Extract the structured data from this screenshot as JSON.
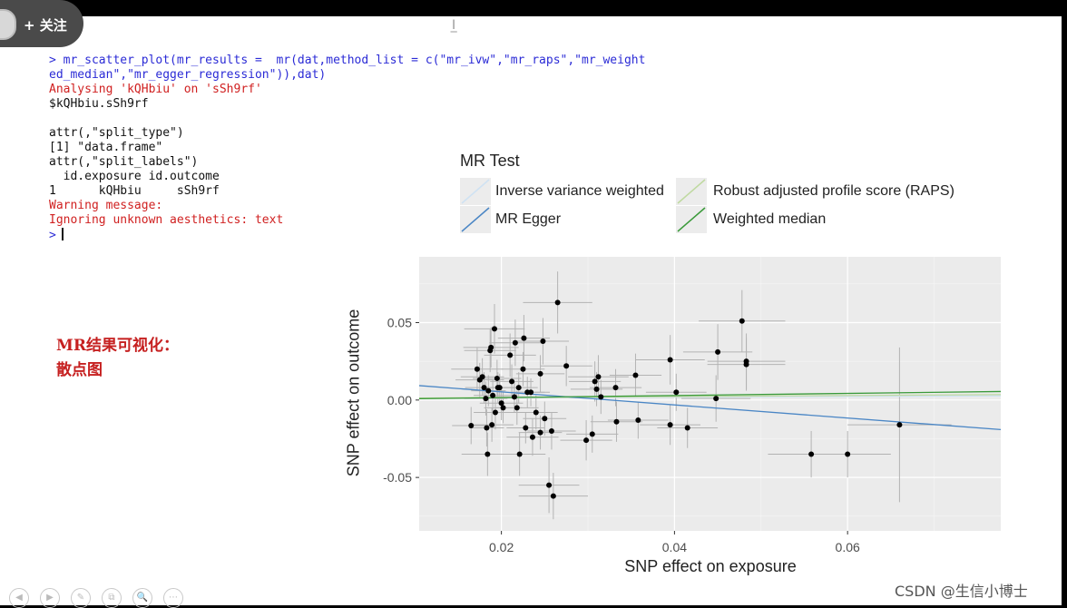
{
  "follow_button": {
    "label": "+ 关注"
  },
  "console": {
    "lines": [
      {
        "text": "> mr_scatter_plot(mr_results =  mr(dat,method_list = c(\"mr_ivw\",\"mr_raps\",\"mr_weight",
        "color": "blue"
      },
      {
        "text": "ed_median\",\"mr_egger_regression\")),dat)",
        "color": "blue"
      },
      {
        "text": "Analysing 'kQHbiu' on 'sSh9rf'",
        "color": "red"
      },
      {
        "text": "$kQHbiu.sSh9rf",
        "color": "black"
      },
      {
        "text": "",
        "color": "black"
      },
      {
        "text": "attr(,\"split_type\")",
        "color": "black"
      },
      {
        "text": "[1] \"data.frame\"",
        "color": "black"
      },
      {
        "text": "attr(,\"split_labels\")",
        "color": "black"
      },
      {
        "text": "  id.exposure id.outcome",
        "color": "black"
      },
      {
        "text": "1      kQHbiu     sSh9rf",
        "color": "black"
      },
      {
        "text": "Warning message:",
        "color": "red"
      },
      {
        "text": "Ignoring unknown aesthetics: text",
        "color": "red"
      },
      {
        "text": ">",
        "color": "blue"
      }
    ]
  },
  "annotation": {
    "line1": "MR结果可视化：",
    "line2": "散点图"
  },
  "chart_data": {
    "type": "scatter",
    "xlabel": "SNP effect on exposure",
    "ylabel": "SNP effect on outcome",
    "x_ticks": [
      "0.02",
      "0.04",
      "0.06"
    ],
    "y_ticks": [
      "0.05",
      "0.00",
      "-0.05"
    ],
    "x_tick_values": [
      0.02,
      0.04,
      0.06
    ],
    "y_tick_values": [
      0.05,
      0.0,
      -0.05
    ],
    "xlim": [
      0.0105,
      0.0777
    ],
    "ylim": [
      -0.0845,
      0.0925
    ],
    "legend_title": "MR Test",
    "legend": [
      {
        "label": "Inverse variance weighted",
        "color": "#cfe2f3"
      },
      {
        "label": "Robust adjusted profile score (RAPS)",
        "color": "#bfd9a0"
      },
      {
        "label": "MR Egger",
        "color": "#4a86c5"
      },
      {
        "label": "Weighted median",
        "color": "#3a9a3a"
      }
    ],
    "legend_placement": "top",
    "grid": true,
    "colors": {
      "panel_bg": "#ebebeb",
      "grid": "#ffffff",
      "points": "#000000",
      "errorbars": "#b3b3b3"
    },
    "lines": [
      {
        "label": "Inverse variance weighted",
        "color": "#cfe2f3",
        "x": [
          0.0105,
          0.0777
        ],
        "y": [
          0.0012,
          0.0027
        ]
      },
      {
        "label": "Robust adjusted profile score (RAPS)",
        "color": "#bfd9a0",
        "x": [
          0.0105,
          0.0777
        ],
        "y": [
          0.0013,
          0.0035
        ]
      },
      {
        "label": "MR Egger",
        "color": "#4a86c5",
        "x": [
          0.0105,
          0.0777
        ],
        "y": [
          0.0093,
          -0.0191
        ]
      },
      {
        "label": "Weighted median",
        "color": "#3a9a3a",
        "x": [
          0.0105,
          0.0777
        ],
        "y": [
          0.0009,
          0.0055
        ]
      }
    ],
    "points": [
      {
        "x": 0.0165,
        "y": -0.0165,
        "xse": 0.0022,
        "yse": 0.012
      },
      {
        "x": 0.0172,
        "y": 0.02,
        "xse": 0.003,
        "yse": 0.014
      },
      {
        "x": 0.0175,
        "y": 0.013,
        "xse": 0.0028,
        "yse": 0.011
      },
      {
        "x": 0.0178,
        "y": 0.015,
        "xse": 0.0025,
        "yse": 0.012
      },
      {
        "x": 0.018,
        "y": 0.008,
        "xse": 0.0022,
        "yse": 0.01
      },
      {
        "x": 0.0182,
        "y": 0.001,
        "xse": 0.0025,
        "yse": 0.011
      },
      {
        "x": 0.0183,
        "y": -0.018,
        "xse": 0.002,
        "yse": 0.012
      },
      {
        "x": 0.0184,
        "y": -0.035,
        "xse": 0.003,
        "yse": 0.014
      },
      {
        "x": 0.0185,
        "y": 0.006,
        "xse": 0.002,
        "yse": 0.01
      },
      {
        "x": 0.0187,
        "y": 0.032,
        "xse": 0.003,
        "yse": 0.014
      },
      {
        "x": 0.0188,
        "y": 0.034,
        "xse": 0.0032,
        "yse": 0.013
      },
      {
        "x": 0.0189,
        "y": -0.016,
        "xse": 0.0025,
        "yse": 0.011
      },
      {
        "x": 0.019,
        "y": 0.003,
        "xse": 0.0022,
        "yse": 0.01
      },
      {
        "x": 0.0192,
        "y": 0.046,
        "xse": 0.0035,
        "yse": 0.016
      },
      {
        "x": 0.0193,
        "y": -0.008,
        "xse": 0.0025,
        "yse": 0.011
      },
      {
        "x": 0.0195,
        "y": 0.014,
        "xse": 0.0028,
        "yse": 0.012
      },
      {
        "x": 0.0196,
        "y": 0.008,
        "xse": 0.002,
        "yse": 0.01
      },
      {
        "x": 0.0198,
        "y": 0.008,
        "xse": 0.0022,
        "yse": 0.009
      },
      {
        "x": 0.02,
        "y": -0.002,
        "xse": 0.0025,
        "yse": 0.011
      },
      {
        "x": 0.0202,
        "y": -0.005,
        "xse": 0.0022,
        "yse": 0.01
      },
      {
        "x": 0.021,
        "y": 0.029,
        "xse": 0.003,
        "yse": 0.014
      },
      {
        "x": 0.0212,
        "y": 0.012,
        "xse": 0.0025,
        "yse": 0.011
      },
      {
        "x": 0.0215,
        "y": 0.002,
        "xse": 0.0022,
        "yse": 0.01
      },
      {
        "x": 0.0216,
        "y": 0.037,
        "xse": 0.003,
        "yse": 0.015
      },
      {
        "x": 0.0218,
        "y": -0.005,
        "xse": 0.0025,
        "yse": 0.011
      },
      {
        "x": 0.022,
        "y": 0.008,
        "xse": 0.0022,
        "yse": 0.01
      },
      {
        "x": 0.0221,
        "y": -0.035,
        "xse": 0.003,
        "yse": 0.014
      },
      {
        "x": 0.0225,
        "y": 0.02,
        "xse": 0.0025,
        "yse": 0.011
      },
      {
        "x": 0.0226,
        "y": 0.04,
        "xse": 0.003,
        "yse": 0.015
      },
      {
        "x": 0.0228,
        "y": -0.018,
        "xse": 0.0022,
        "yse": 0.01
      },
      {
        "x": 0.023,
        "y": 0.005,
        "xse": 0.002,
        "yse": 0.01
      },
      {
        "x": 0.0234,
        "y": 0.005,
        "xse": 0.0022,
        "yse": 0.009
      },
      {
        "x": 0.0236,
        "y": -0.024,
        "xse": 0.003,
        "yse": 0.012
      },
      {
        "x": 0.024,
        "y": -0.008,
        "xse": 0.0025,
        "yse": 0.011
      },
      {
        "x": 0.0245,
        "y": 0.017,
        "xse": 0.0028,
        "yse": 0.012
      },
      {
        "x": 0.0245,
        "y": -0.021,
        "xse": 0.0025,
        "yse": 0.011
      },
      {
        "x": 0.0248,
        "y": 0.038,
        "xse": 0.003,
        "yse": 0.015
      },
      {
        "x": 0.025,
        "y": -0.012,
        "xse": 0.0025,
        "yse": 0.011
      },
      {
        "x": 0.0255,
        "y": -0.055,
        "xse": 0.0035,
        "yse": 0.018
      },
      {
        "x": 0.0258,
        "y": -0.02,
        "xse": 0.0028,
        "yse": 0.012
      },
      {
        "x": 0.026,
        "y": -0.062,
        "xse": 0.004,
        "yse": 0.015
      },
      {
        "x": 0.0265,
        "y": 0.063,
        "xse": 0.004,
        "yse": 0.02
      },
      {
        "x": 0.0275,
        "y": 0.022,
        "xse": 0.003,
        "yse": 0.013
      },
      {
        "x": 0.0298,
        "y": -0.026,
        "xse": 0.003,
        "yse": 0.013
      },
      {
        "x": 0.0305,
        "y": -0.022,
        "xse": 0.003,
        "yse": 0.012
      },
      {
        "x": 0.0308,
        "y": 0.012,
        "xse": 0.003,
        "yse": 0.013
      },
      {
        "x": 0.031,
        "y": 0.007,
        "xse": 0.003,
        "yse": 0.011
      },
      {
        "x": 0.0312,
        "y": 0.015,
        "xse": 0.0035,
        "yse": 0.014
      },
      {
        "x": 0.0315,
        "y": 0.002,
        "xse": 0.003,
        "yse": 0.011
      },
      {
        "x": 0.0332,
        "y": 0.008,
        "xse": 0.003,
        "yse": 0.012
      },
      {
        "x": 0.0333,
        "y": -0.014,
        "xse": 0.003,
        "yse": 0.013
      },
      {
        "x": 0.0355,
        "y": 0.016,
        "xse": 0.003,
        "yse": 0.014
      },
      {
        "x": 0.0358,
        "y": -0.013,
        "xse": 0.0035,
        "yse": 0.012
      },
      {
        "x": 0.0395,
        "y": 0.026,
        "xse": 0.004,
        "yse": 0.016
      },
      {
        "x": 0.0395,
        "y": -0.016,
        "xse": 0.0035,
        "yse": 0.013
      },
      {
        "x": 0.0402,
        "y": 0.005,
        "xse": 0.0035,
        "yse": 0.012
      },
      {
        "x": 0.0415,
        "y": -0.018,
        "xse": 0.0035,
        "yse": 0.013
      },
      {
        "x": 0.0448,
        "y": 0.001,
        "xse": 0.004,
        "yse": 0.015
      },
      {
        "x": 0.045,
        "y": 0.031,
        "xse": 0.004,
        "yse": 0.018
      },
      {
        "x": 0.0478,
        "y": 0.051,
        "xse": 0.005,
        "yse": 0.02
      },
      {
        "x": 0.0483,
        "y": 0.025,
        "xse": 0.0045,
        "yse": 0.018
      },
      {
        "x": 0.0483,
        "y": 0.023,
        "xse": 0.0045,
        "yse": 0.017
      },
      {
        "x": 0.0558,
        "y": -0.035,
        "xse": 0.005,
        "yse": 0.015
      },
      {
        "x": 0.06,
        "y": -0.035,
        "xse": 0.005,
        "yse": 0.015
      },
      {
        "x": 0.066,
        "y": -0.016,
        "xse": 0.006,
        "yse": 0.05
      }
    ]
  },
  "toolbar_icons": [
    "prev-icon",
    "next-icon",
    "pen-icon",
    "copy-icon",
    "zoom-icon",
    "more-icon"
  ],
  "toolbar_glyphs": [
    "◀",
    "▶",
    "✎",
    "⧉",
    "🔍",
    "⋯"
  ],
  "watermark": "CSDN @生信小博士"
}
